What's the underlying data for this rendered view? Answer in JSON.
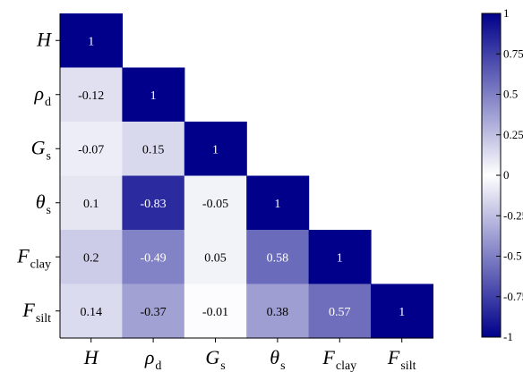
{
  "chart_data": {
    "type": "heatmap",
    "variables": [
      {
        "main": "H",
        "sub": ""
      },
      {
        "main": "ρ",
        "sub": "d"
      },
      {
        "main": "G",
        "sub": "s"
      },
      {
        "main": "θ",
        "sub": "s"
      },
      {
        "main": "F",
        "sub": "clay"
      },
      {
        "main": "F",
        "sub": "silt"
      }
    ],
    "matrix": [
      [
        "1"
      ],
      [
        "-0.12",
        "1"
      ],
      [
        "-0.07",
        "0.15",
        "1"
      ],
      [
        "0.1",
        "-0.83",
        "-0.05",
        "1"
      ],
      [
        "0.2",
        "-0.49",
        "0.05",
        "0.58",
        "1"
      ],
      [
        "0.14",
        "-0.37",
        "-0.01",
        "0.38",
        "0.57",
        "1"
      ]
    ],
    "colorbar": {
      "range": [
        -1,
        1
      ],
      "ticks": [
        "1",
        "0.75",
        "0.5",
        "0.25",
        "0",
        "-0.25",
        "-0.5",
        "-0.75",
        "-1"
      ],
      "colors": {
        "positive": "#00008b",
        "zero": "#ffffff",
        "negative": "#00008b"
      }
    }
  }
}
